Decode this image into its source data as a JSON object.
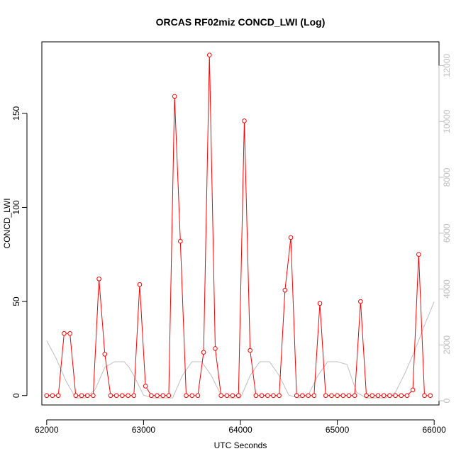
{
  "chart_data": {
    "type": "line",
    "title": "ORCAS RF02miz CONCD_LWI (Log)",
    "xlabel": "UTC Seconds",
    "ylabel": "CONCD_LWI",
    "xlim": [
      61950,
      66050
    ],
    "ylim": [
      -5,
      188
    ],
    "y2lim": [
      -150,
      12850
    ],
    "x_ticks": [
      62000,
      63000,
      64000,
      65000,
      66000
    ],
    "y_ticks": [
      0,
      50,
      100,
      150
    ],
    "y2_ticks": [
      0,
      2000,
      4000,
      6000,
      8000,
      10000,
      12000
    ],
    "grid": false,
    "legend": "none",
    "colors": {
      "primary": "#ff0000",
      "secondary": "#bebebe",
      "axis": "#000000"
    },
    "series": [
      {
        "axis": "left",
        "color": "#ff0000",
        "style": "line+points",
        "x": [
          62000,
          62060,
          62120,
          62180,
          62240,
          62300,
          62360,
          62420,
          62480,
          62540,
          62600,
          62660,
          62720,
          62780,
          62840,
          62900,
          62960,
          63020,
          63080,
          63140,
          63200,
          63260,
          63320,
          63380,
          63440,
          63500,
          63560,
          63620,
          63680,
          63740,
          63800,
          63860,
          63920,
          63980,
          64040,
          64100,
          64160,
          64220,
          64280,
          64340,
          64400,
          64460,
          64520,
          64580,
          64640,
          64700,
          64760,
          64820,
          64880,
          64940,
          65000,
          65060,
          65120,
          65180,
          65240,
          65300,
          65360,
          65420,
          65480,
          65540,
          65600,
          65660,
          65720,
          65780,
          65840,
          65900,
          65960
        ],
        "y": [
          0,
          0,
          0,
          33,
          33,
          0,
          0,
          0,
          0,
          62,
          22,
          0,
          0,
          0,
          0,
          0,
          59,
          5,
          0,
          0,
          0,
          0,
          159,
          82,
          0,
          0,
          0,
          23,
          181,
          25,
          0,
          0,
          0,
          0,
          146,
          24,
          0,
          0,
          0,
          0,
          0,
          56,
          84,
          0,
          0,
          0,
          0,
          49,
          0,
          0,
          0,
          0,
          0,
          0,
          50,
          0,
          0,
          0,
          0,
          0,
          0,
          0,
          0,
          3,
          75,
          0,
          0
        ]
      },
      {
        "axis": "right",
        "color": "#bebebe",
        "style": "line",
        "x": [
          62000,
          62100,
          62200,
          62300,
          62350,
          62400,
          62500,
          62600,
          62700,
          62800,
          62850,
          62900,
          63000,
          63100,
          63200,
          63300,
          63400,
          63500,
          63600,
          63700,
          63800,
          63900,
          64000,
          64100,
          64200,
          64300,
          64400,
          64500,
          64600,
          64700,
          64800,
          64900,
          65000,
          65100,
          65200,
          65300,
          65400,
          65500,
          65600,
          65700,
          65800,
          65900,
          66000
        ],
        "y": [
          2150,
          1500,
          700,
          100,
          100,
          100,
          400,
          1200,
          1400,
          1400,
          1200,
          900,
          200,
          100,
          100,
          100,
          900,
          1400,
          1400,
          900,
          200,
          100,
          100,
          900,
          1400,
          1400,
          900,
          200,
          100,
          200,
          900,
          1400,
          1400,
          1300,
          300,
          100,
          100,
          100,
          300,
          1000,
          1800,
          2700,
          3550
        ]
      }
    ]
  }
}
